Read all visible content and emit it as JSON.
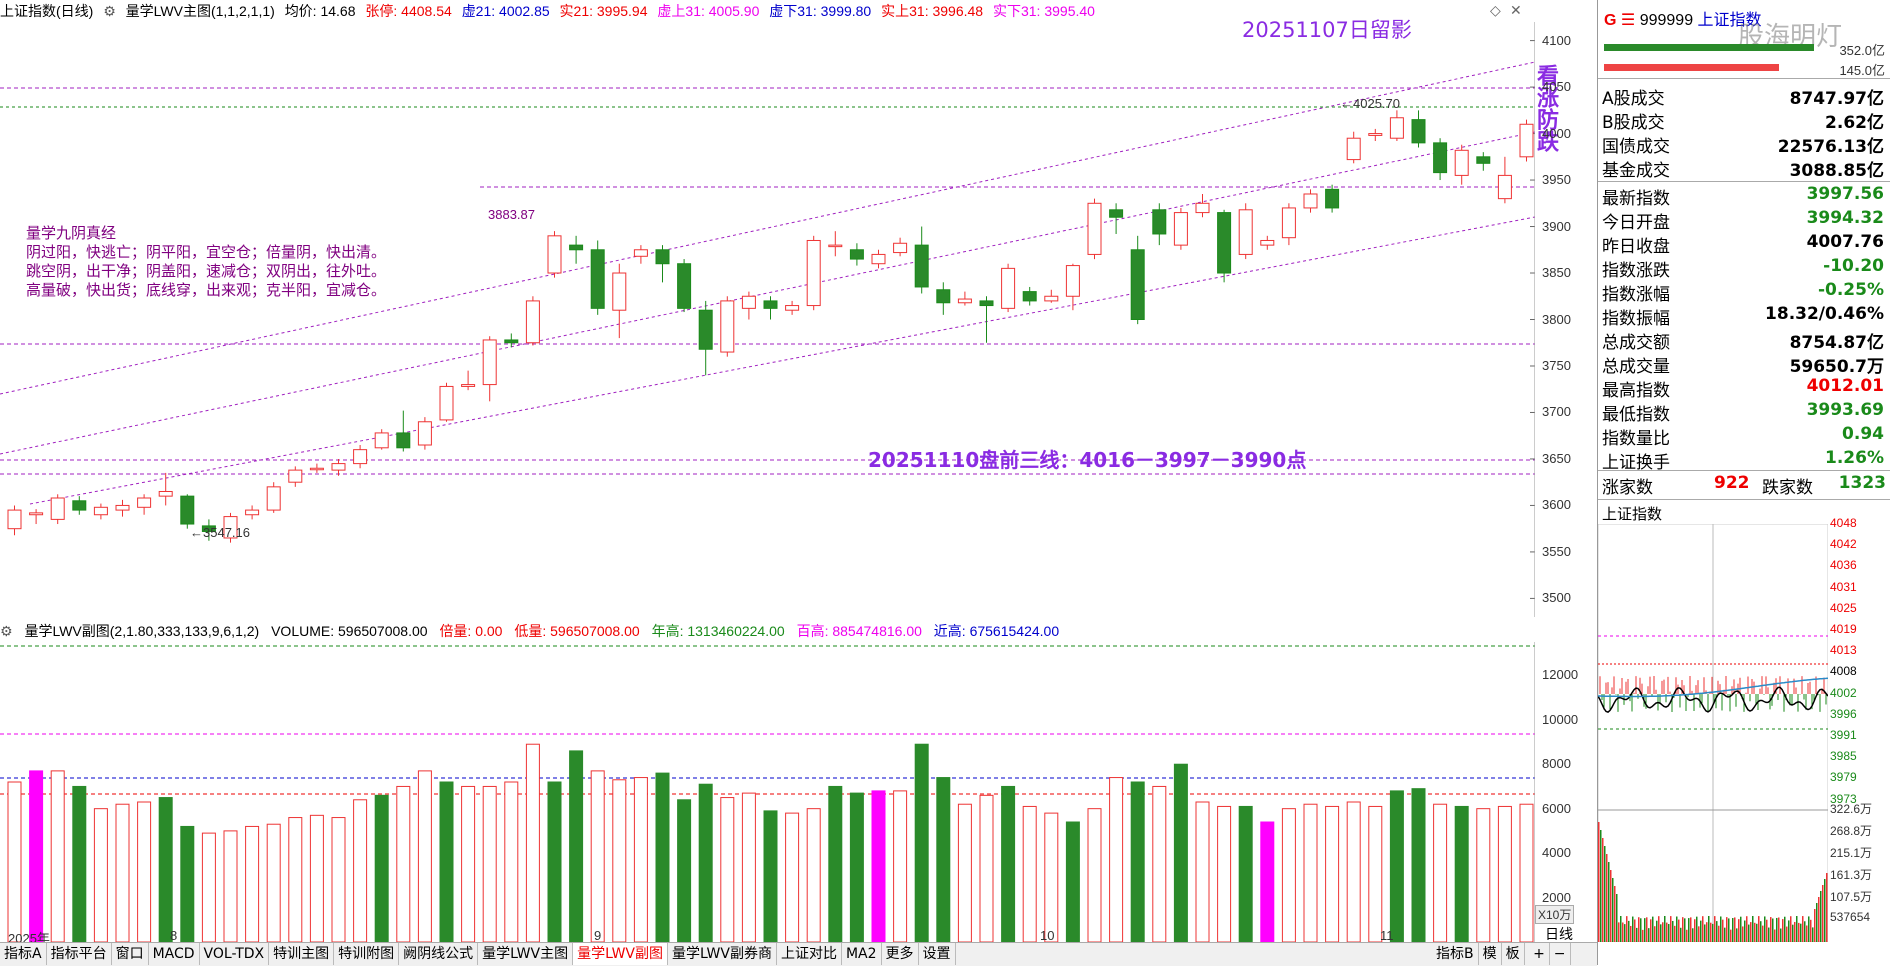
{
  "header": {
    "title": "上证指数(日线)",
    "main_indicator": "量学LWV主图(1,1,2,1,1)",
    "avg_label": "均价: 14.68",
    "zt_label": "张停: 4408.54",
    "xu21": "虚21: 4002.85",
    "shi21": "实21: 3995.94",
    "xushang31": "虚上31: 4005.90",
    "xuxia31": "虚下31: 3999.80",
    "shishang31": "实上31: 3996.48",
    "shixia31": "实下31: 3995.40"
  },
  "annotations": {
    "date_note": "20251107日留影",
    "side_note": "看涨防跌",
    "plan_note": "20251110盘前三线：4016－3997－3990点",
    "jingwen_title": "量学九阴真经",
    "jingwen_lines": [
      "阴过阳，快逃亡；阴平阳，宜空仓；倍量阴，快出清。",
      "跳空阴，出干净；阴盖阳，速减仓；双阴出，往外吐。",
      "高量破，快出货；底线穿，出来观；克半阳，宜减仓。"
    ],
    "high_label": "4025.70",
    "mid_label": "3883.87",
    "low_label": "3547.16"
  },
  "price_axis": [
    "4100",
    "4050",
    "4000",
    "3950",
    "3900",
    "3850",
    "3800",
    "3750",
    "3700",
    "3650",
    "3600",
    "3550",
    "3500"
  ],
  "volume_axis": [
    "12000",
    "10000",
    "8000",
    "6000",
    "4000",
    "2000"
  ],
  "volume_unit": "X10万",
  "subheader": {
    "name": "量学LWV副图(2,1.80,333,133,9,6,1,2)",
    "volume": "VOLUME: 596507008.00",
    "beiliang": "倍量: 0.00",
    "diliang": "低量: 596507008.00",
    "niangao": "年高: 1313460224.00",
    "baigao": "百高: 885474816.00",
    "jingao": "近高: 675615424.00"
  },
  "x_labels": [
    "2025年",
    "8",
    "9",
    "10",
    "11"
  ],
  "period": "日线",
  "bottom_tabs": [
    "指标A",
    "指标平台",
    "窗口",
    "MACD",
    "VOL-TDX",
    "特训主图",
    "特训附图",
    "阙阴线公式",
    "量学LWV主图",
    "量学LWV副图",
    "量学LWV副券商",
    "上证对比",
    "MA2",
    "更多",
    "设置"
  ],
  "active_tab": "量学LWV副图",
  "right_tabs": [
    "指标B",
    "模",
    "板"
  ],
  "right": {
    "code": "999999",
    "name": "上证指数",
    "watermark": "股海明灯",
    "bar_val1": "352.0亿",
    "bar_val2": "145.0亿",
    "rows1": [
      {
        "label": "A股成交",
        "value": "8747.97亿",
        "color": "#000"
      },
      {
        "label": "B股成交",
        "value": "2.62亿",
        "color": "#000"
      },
      {
        "label": "国债成交",
        "value": "22576.13亿",
        "color": "#000"
      },
      {
        "label": "基金成交",
        "value": "3088.85亿",
        "color": "#000"
      }
    ],
    "rows2": [
      {
        "label": "最新指数",
        "value": "3997.56",
        "color": "#1a8a1a"
      },
      {
        "label": "今日开盘",
        "value": "3994.32",
        "color": "#1a8a1a"
      },
      {
        "label": "昨日收盘",
        "value": "4007.76",
        "color": "#000"
      },
      {
        "label": "指数涨跌",
        "value": "-10.20",
        "color": "#1a8a1a"
      },
      {
        "label": "指数涨幅",
        "value": "-0.25%",
        "color": "#1a8a1a"
      },
      {
        "label": "指数振幅",
        "value": "18.32/0.46%",
        "color": "#000"
      },
      {
        "label": "总成交额",
        "value": "8754.87亿",
        "color": "#000"
      },
      {
        "label": "总成交量",
        "value": "59650.7万",
        "color": "#000"
      },
      {
        "label": "最高指数",
        "value": "4012.01",
        "color": "#e00"
      },
      {
        "label": "最低指数",
        "value": "3993.69",
        "color": "#1a8a1a"
      },
      {
        "label": "指数量比",
        "value": "0.94",
        "color": "#1a8a1a"
      },
      {
        "label": "上证换手",
        "value": "1.26%",
        "color": "#1a8a1a"
      }
    ],
    "up_label": "涨家数",
    "up_count": "922",
    "down_label": "跌家数",
    "down_count": "1323",
    "mini_title": "上证指数",
    "mini_axis": [
      "4048",
      "4042",
      "4036",
      "4031",
      "4025",
      "4019",
      "4013",
      "4008",
      "4002",
      "3996",
      "3991",
      "3985",
      "3979",
      "3973"
    ],
    "mini_vol_axis": [
      "322.6万",
      "268.8万",
      "215.1万",
      "161.3万",
      "107.5万",
      "537654"
    ]
  },
  "chart_data": {
    "type": "candlestick",
    "price_ylim": [
      3480,
      4120
    ],
    "candles": [
      [
        3575,
        3595,
        3568,
        3600
      ],
      [
        3590,
        3592,
        3580,
        3596
      ],
      [
        3585,
        3608,
        3580,
        3612
      ],
      [
        3605,
        3595,
        3590,
        3610
      ],
      [
        3590,
        3598,
        3585,
        3602
      ],
      [
        3595,
        3600,
        3588,
        3606
      ],
      [
        3598,
        3608,
        3590,
        3612
      ],
      [
        3610,
        3615,
        3600,
        3635
      ],
      [
        3610,
        3580,
        3575,
        3612
      ],
      [
        3578,
        3572,
        3562,
        3585
      ],
      [
        3565,
        3588,
        3560,
        3592
      ],
      [
        3590,
        3595,
        3585,
        3600
      ],
      [
        3595,
        3620,
        3592,
        3625
      ],
      [
        3625,
        3638,
        3620,
        3642
      ],
      [
        3640,
        3640,
        3635,
        3645
      ],
      [
        3638,
        3645,
        3632,
        3650
      ],
      [
        3645,
        3660,
        3640,
        3665
      ],
      [
        3662,
        3678,
        3660,
        3682
      ],
      [
        3678,
        3662,
        3658,
        3702
      ],
      [
        3665,
        3690,
        3660,
        3695
      ],
      [
        3692,
        3728,
        3690,
        3732
      ],
      [
        3728,
        3730,
        3724,
        3745
      ],
      [
        3730,
        3778,
        3712,
        3782
      ],
      [
        3778,
        3775,
        3770,
        3785
      ],
      [
        3775,
        3820,
        3772,
        3825
      ],
      [
        3850,
        3890,
        3845,
        3895
      ],
      [
        3880,
        3875,
        3860,
        3890
      ],
      [
        3875,
        3812,
        3805,
        3885
      ],
      [
        3810,
        3850,
        3780,
        3860
      ],
      [
        3868,
        3875,
        3860,
        3880
      ],
      [
        3875,
        3860,
        3840,
        3880
      ],
      [
        3860,
        3812,
        3808,
        3865
      ],
      [
        3810,
        3768,
        3740,
        3820
      ],
      [
        3765,
        3820,
        3760,
        3825
      ],
      [
        3812,
        3825,
        3800,
        3830
      ],
      [
        3820,
        3812,
        3800,
        3825
      ],
      [
        3810,
        3815,
        3805,
        3820
      ],
      [
        3815,
        3885,
        3810,
        3890
      ],
      [
        3880,
        3880,
        3868,
        3895
      ],
      [
        3875,
        3865,
        3858,
        3882
      ],
      [
        3860,
        3870,
        3855,
        3875
      ],
      [
        3872,
        3882,
        3868,
        3888
      ],
      [
        3880,
        3835,
        3828,
        3900
      ],
      [
        3832,
        3818,
        3805,
        3840
      ],
      [
        3818,
        3822,
        3815,
        3830
      ],
      [
        3820,
        3815,
        3775,
        3825
      ],
      [
        3812,
        3855,
        3808,
        3860
      ],
      [
        3830,
        3820,
        3815,
        3835
      ],
      [
        3820,
        3825,
        3818,
        3832
      ],
      [
        3825,
        3858,
        3810,
        3860
      ],
      [
        3870,
        3925,
        3865,
        3930
      ],
      [
        3918,
        3910,
        3892,
        3925
      ],
      [
        3875,
        3800,
        3795,
        3890
      ],
      [
        3918,
        3892,
        3880,
        3925
      ],
      [
        3880,
        3915,
        3875,
        3920
      ],
      [
        3915,
        3925,
        3910,
        3935
      ],
      [
        3915,
        3850,
        3840,
        3918
      ],
      [
        3870,
        3918,
        3865,
        3925
      ],
      [
        3880,
        3885,
        3875,
        3890
      ],
      [
        3888,
        3920,
        3880,
        3925
      ],
      [
        3920,
        3935,
        3915,
        3940
      ],
      [
        3940,
        3920,
        3915,
        3945
      ],
      [
        3972,
        3995,
        3968,
        4002
      ],
      [
        3998,
        4000,
        3992,
        4005
      ],
      [
        3995,
        4017,
        3992,
        4025
      ],
      [
        4015,
        3990,
        3985,
        4025
      ],
      [
        3990,
        3958,
        3950,
        3995
      ],
      [
        3955,
        3982,
        3945,
        3988
      ],
      [
        3975,
        3968,
        3960,
        3980
      ],
      [
        3930,
        3955,
        3925,
        3975
      ],
      [
        3975,
        4010,
        3970,
        4015
      ],
      [
        3998,
        4002,
        3994,
        4012
      ]
    ],
    "volumes": [
      [
        7200,
        "up"
      ],
      [
        7700,
        "mg"
      ],
      [
        7700,
        "up"
      ],
      [
        7000,
        "dn"
      ],
      [
        6000,
        "up"
      ],
      [
        6200,
        "up"
      ],
      [
        6300,
        "up"
      ],
      [
        6500,
        "dn"
      ],
      [
        5200,
        "dn"
      ],
      [
        4900,
        "up"
      ],
      [
        5000,
        "up"
      ],
      [
        5200,
        "up"
      ],
      [
        5300,
        "up"
      ],
      [
        5600,
        "up"
      ],
      [
        5700,
        "up"
      ],
      [
        5600,
        "up"
      ],
      [
        6400,
        "up"
      ],
      [
        6600,
        "dn"
      ],
      [
        7000,
        "up"
      ],
      [
        7700,
        "up"
      ],
      [
        7200,
        "dn"
      ],
      [
        7000,
        "up"
      ],
      [
        7000,
        "up"
      ],
      [
        7200,
        "up"
      ],
      [
        8900,
        "up"
      ],
      [
        7200,
        "dn"
      ],
      [
        8600,
        "dn"
      ],
      [
        7700,
        "up"
      ],
      [
        7300,
        "up"
      ],
      [
        7400,
        "up"
      ],
      [
        7600,
        "dn"
      ],
      [
        6400,
        "dn"
      ],
      [
        7100,
        "dn"
      ],
      [
        6500,
        "up"
      ],
      [
        6700,
        "up"
      ],
      [
        5900,
        "dn"
      ],
      [
        5800,
        "up"
      ],
      [
        6000,
        "up"
      ],
      [
        7000,
        "dn"
      ],
      [
        6700,
        "dn"
      ],
      [
        6800,
        "mg"
      ],
      [
        6800,
        "up"
      ],
      [
        8900,
        "dn"
      ],
      [
        7400,
        "dn"
      ],
      [
        6200,
        "up"
      ],
      [
        6600,
        "up"
      ],
      [
        7000,
        "dn"
      ],
      [
        6100,
        "up"
      ],
      [
        5800,
        "up"
      ],
      [
        5400,
        "dn"
      ],
      [
        6000,
        "up"
      ],
      [
        7400,
        "up"
      ],
      [
        7200,
        "dn"
      ],
      [
        7000,
        "up"
      ],
      [
        8000,
        "dn"
      ],
      [
        6300,
        "up"
      ],
      [
        6100,
        "up"
      ],
      [
        6100,
        "dn"
      ],
      [
        5400,
        "mg"
      ],
      [
        6000,
        "up"
      ],
      [
        6200,
        "up"
      ],
      [
        6100,
        "up"
      ],
      [
        6300,
        "up"
      ],
      [
        6100,
        "up"
      ],
      [
        6800,
        "dn"
      ],
      [
        6900,
        "dn"
      ],
      [
        6200,
        "up"
      ],
      [
        6100,
        "dn"
      ],
      [
        6000,
        "up"
      ],
      [
        6100,
        "up"
      ],
      [
        6200,
        "up"
      ],
      [
        5900,
        "up"
      ]
    ],
    "volume_ylim": [
      0,
      13500
    ]
  }
}
